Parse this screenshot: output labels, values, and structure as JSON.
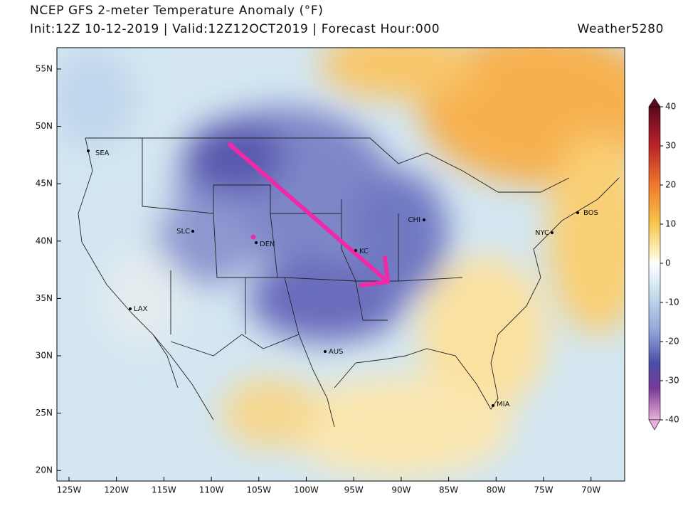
{
  "header": {
    "title": "NCEP GFS 2-meter Temperature Anomaly (°F)",
    "subtitle": "Init:12Z 10-12-2019 | Valid:12Z12OCT2019 | Forecast Hour:000",
    "brand": "Weather5280"
  },
  "map": {
    "lat_labels": [
      "55N",
      "50N",
      "45N",
      "40N",
      "35N",
      "30N",
      "25N",
      "20N"
    ],
    "lon_labels": [
      "125W",
      "120W",
      "115W",
      "110W",
      "105W",
      "100W",
      "95W",
      "90W",
      "85W",
      "80W",
      "75W",
      "70W"
    ],
    "cities": [
      "SEA",
      "SLC",
      "DEN",
      "KC",
      "CHI",
      "BOS",
      "NYC",
      "LAX",
      "AUS",
      "MIA"
    ]
  },
  "colorbar": {
    "ticks": [
      40,
      30,
      20,
      10,
      0,
      -10,
      -20,
      -30,
      -40
    ]
  }
}
